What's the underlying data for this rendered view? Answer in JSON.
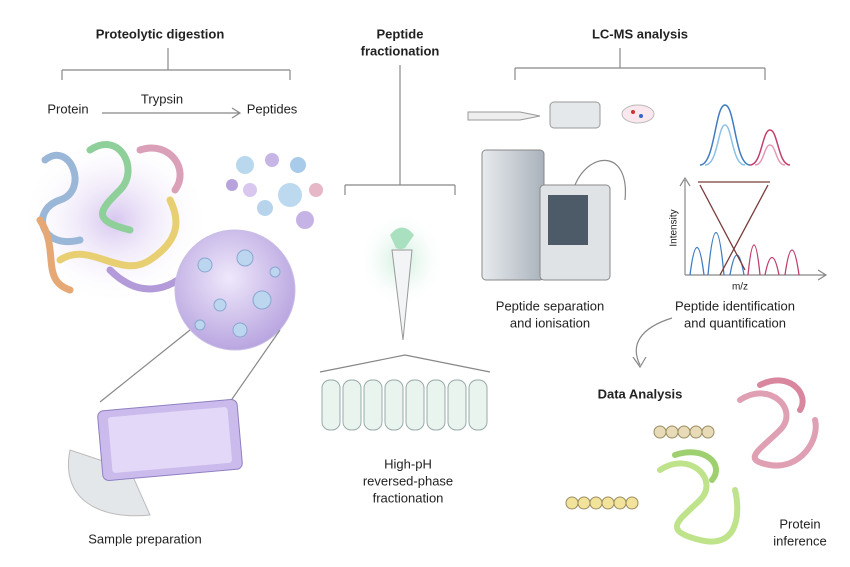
{
  "sections": [
    {
      "title": [
        "Proteolytic digestion"
      ],
      "labels": {
        "protein": "Protein",
        "enzyme": "Trypsin",
        "product": "Peptides"
      },
      "caption": [
        "Sample preparation"
      ]
    },
    {
      "title": [
        "Peptide",
        "fractionation"
      ],
      "caption": [
        "High-pH",
        "reversed-phase",
        "fractionation"
      ]
    },
    {
      "title": [
        "LC-MS analysis"
      ],
      "instrument_caption": [
        "Peptide separation",
        "and ionisation"
      ],
      "spectrum": {
        "y_label": "Intensity",
        "x_label": "m/z"
      },
      "spectrum_caption": [
        "Peptide identification",
        "and quantification"
      ]
    },
    {
      "title": [
        "Data Analysis"
      ],
      "caption": [
        "Protein",
        "inference"
      ]
    }
  ]
}
